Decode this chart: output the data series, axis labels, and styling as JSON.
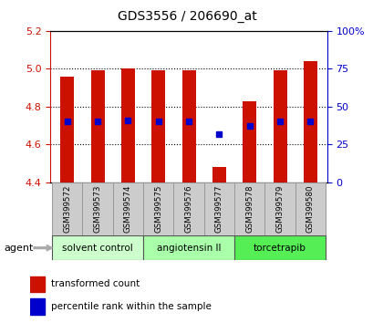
{
  "title": "GDS3556 / 206690_at",
  "samples": [
    "GSM399572",
    "GSM399573",
    "GSM399574",
    "GSM399575",
    "GSM399576",
    "GSM399577",
    "GSM399578",
    "GSM399579",
    "GSM399580"
  ],
  "bar_bottoms": [
    4.4,
    4.4,
    4.4,
    4.4,
    4.4,
    4.4,
    4.4,
    4.4,
    4.4
  ],
  "bar_tops": [
    4.96,
    4.99,
    5.0,
    4.99,
    4.99,
    4.48,
    4.83,
    4.99,
    5.04
  ],
  "blue_vals": [
    4.72,
    4.72,
    4.725,
    4.72,
    4.72,
    4.655,
    4.7,
    4.72,
    4.72
  ],
  "bar_color": "#cc1100",
  "blue_color": "#0000cc",
  "ylim_left": [
    4.4,
    5.2
  ],
  "ylim_right": [
    0,
    100
  ],
  "yticks_left": [
    4.4,
    4.6,
    4.8,
    5.0,
    5.2
  ],
  "yticks_right": [
    0,
    25,
    50,
    75,
    100
  ],
  "ytick_labels_right": [
    "0",
    "25",
    "50",
    "75",
    "100%"
  ],
  "gridlines": [
    4.6,
    4.8,
    5.0
  ],
  "groups": [
    {
      "label": "solvent control",
      "indices": [
        0,
        1,
        2
      ],
      "color": "#ccffcc"
    },
    {
      "label": "angiotensin II",
      "indices": [
        3,
        4,
        5
      ],
      "color": "#aaffaa"
    },
    {
      "label": "torcetrapib",
      "indices": [
        6,
        7,
        8
      ],
      "color": "#55ee55"
    }
  ],
  "agent_label": "agent",
  "legend_red": "transformed count",
  "legend_blue": "percentile rank within the sample",
  "bar_width": 0.45,
  "bg_color": "#ffffff",
  "plot_bg": "#ffffff",
  "tick_label_color_left": "#cc1100",
  "tick_label_color_right": "#0000cc"
}
